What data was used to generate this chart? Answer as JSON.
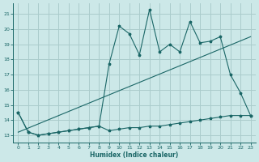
{
  "xlabel": "Humidex (Indice chaleur)",
  "background_color": "#cce8e8",
  "grid_color": "#aacccc",
  "line_color": "#1a6666",
  "x_values": [
    0,
    1,
    2,
    3,
    4,
    5,
    6,
    7,
    8,
    9,
    10,
    11,
    12,
    13,
    14,
    15,
    16,
    17,
    18,
    19,
    20,
    21,
    22,
    23
  ],
  "series1_y": [
    14.5,
    13.2,
    13.0,
    13.1,
    13.2,
    13.3,
    13.4,
    13.5,
    13.6,
    13.3,
    13.4,
    13.5,
    13.5,
    13.6,
    13.6,
    13.7,
    13.8,
    13.9,
    14.0,
    14.1,
    14.2,
    14.3,
    14.3,
    14.3
  ],
  "series2_y": [
    14.5,
    13.2,
    13.0,
    13.1,
    13.2,
    13.3,
    13.4,
    13.5,
    13.6,
    17.7,
    20.2,
    19.7,
    18.3,
    21.3,
    18.5,
    19.0,
    18.5,
    20.5,
    19.1,
    19.2,
    19.5,
    17.0,
    15.8,
    14.3
  ],
  "trend_x": [
    0,
    23
  ],
  "trend_y": [
    13.2,
    19.5
  ],
  "ylim": [
    12.5,
    21.7
  ],
  "xlim": [
    -0.5,
    23.5
  ],
  "yticks": [
    13,
    14,
    15,
    16,
    17,
    18,
    19,
    20,
    21
  ],
  "xticks": [
    0,
    1,
    2,
    3,
    4,
    5,
    6,
    7,
    8,
    9,
    10,
    11,
    12,
    13,
    14,
    15,
    16,
    17,
    18,
    19,
    20,
    21,
    22,
    23
  ]
}
